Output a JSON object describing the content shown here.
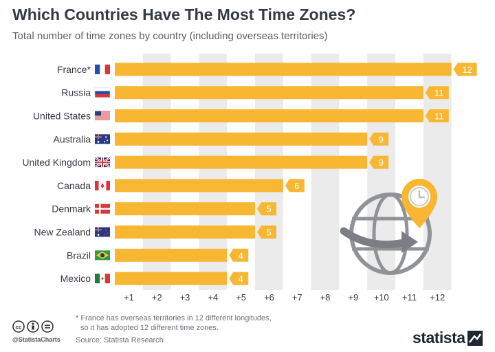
{
  "header": {
    "title": "Which Countries Have The Most Time Zones?",
    "subtitle": "Total number of time zones by country (including overseas territories)"
  },
  "chart_data": {
    "type": "bar",
    "orientation": "horizontal",
    "title": "Which Countries Have The Most Time Zones?",
    "subtitle": "Total number of time zones by country (including overseas territories)",
    "categories": [
      "France*",
      "Russia",
      "United States",
      "Australia",
      "United Kingdom",
      "Canada",
      "Denmark",
      "New Zealand",
      "Brazil",
      "Mexico"
    ],
    "values": [
      12,
      11,
      11,
      9,
      9,
      6,
      5,
      5,
      4,
      4
    ],
    "value_labels": [
      "12",
      "11",
      "11",
      "9",
      "9",
      "6",
      "5",
      "5",
      "4",
      "4"
    ],
    "x_ticks": [
      "+1",
      "+2",
      "+3",
      "+4",
      "+5",
      "+6",
      "+7",
      "+8",
      "+9",
      "+10",
      "+11",
      "+12"
    ],
    "xlim": [
      0,
      12
    ],
    "grid": "alternating vertical bands",
    "bar_color": "#f7b733",
    "label_color": "#f7b733",
    "band_color": "#ebebeb",
    "flags": [
      "france-flag",
      "russia-flag",
      "usa-flag",
      "australia-flag",
      "uk-flag",
      "canada-flag",
      "denmark-flag",
      "new-zealand-flag",
      "brazil-flag",
      "mexico-flag"
    ]
  },
  "footer": {
    "footnote_line1": "* France has overseas territories in 12 different longitudes,",
    "footnote_line2": "so it has adopted 12 different time zones.",
    "handle": "@StatistaCharts",
    "source": "Source: Statista Research",
    "brand": "statista"
  },
  "illustration": {
    "icon": "globe-with-clock-pin-icon",
    "accent": "#f7b733",
    "gray": "#8f9398"
  }
}
